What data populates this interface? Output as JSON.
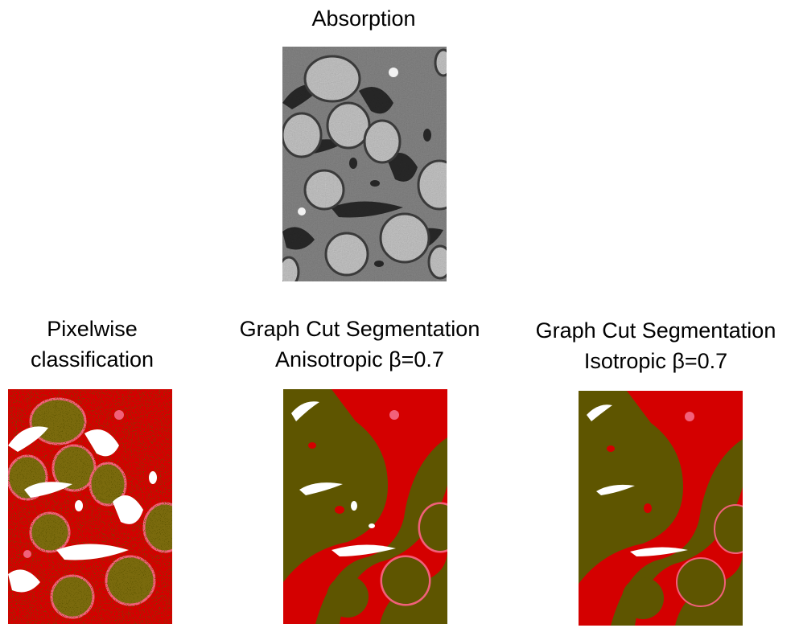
{
  "panels": {
    "absorption": {
      "title_lines": [
        "Absorption"
      ],
      "icon": "grayscale-micrograph-image"
    },
    "pixelwise": {
      "title_lines": [
        "Pixelwise",
        "classification"
      ],
      "icon": "noisy-segmentation-map-image"
    },
    "anisotropic": {
      "title_lines": [
        "Graph Cut Segmentation",
        "Anisotropic β=0.7"
      ],
      "icon": "smooth-segmentation-map-image"
    },
    "isotropic": {
      "title_lines": [
        "Graph Cut Segmentation",
        "Isotropic β=0.7"
      ],
      "icon": "smooth-segmentation-map-image"
    }
  },
  "colors": {
    "background_class": "#d40000",
    "particle_class": "#5e5500",
    "edge_class": "#f2607a",
    "gap_class": "#ffffff",
    "gray_matrix": "#7a7a7a",
    "gray_particle": "#b4b4b4",
    "gray_pore": "#1e1e1e"
  }
}
